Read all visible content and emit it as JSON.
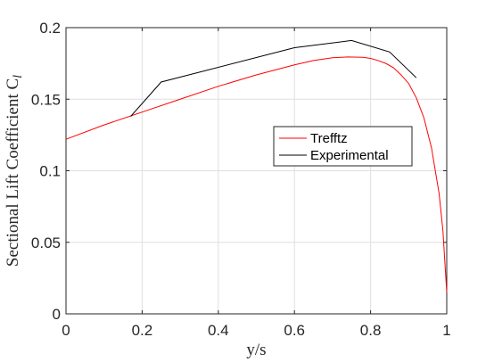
{
  "chart_data": {
    "type": "line",
    "xlabel": "y/s",
    "ylabel": "Sectional Lift Coefficient C",
    "ylabel_subscript": "l",
    "xlim": [
      0,
      1
    ],
    "ylim": [
      0,
      0.2
    ],
    "xticks": [
      0,
      0.2,
      0.4,
      0.6,
      0.8,
      1
    ],
    "xtick_labels": [
      "0",
      "0.2",
      "0.4",
      "0.6",
      "0.8",
      "1"
    ],
    "yticks": [
      0,
      0.05,
      0.1,
      0.15,
      0.2
    ],
    "ytick_labels": [
      "0",
      "0.05",
      "0.1",
      "0.15",
      "0.2"
    ],
    "grid": true,
    "legend_placement": "center-right",
    "series": [
      {
        "name": "Trefftz",
        "color": "#ff0000",
        "x": [
          0,
          0.1,
          0.2,
          0.3,
          0.4,
          0.5,
          0.6,
          0.65,
          0.7,
          0.74,
          0.78,
          0.8,
          0.82,
          0.84,
          0.86,
          0.88,
          0.9,
          0.92,
          0.94,
          0.96,
          0.98,
          0.99,
          1.0
        ],
        "y": [
          0.122,
          0.132,
          0.141,
          0.15,
          0.159,
          0.167,
          0.174,
          0.177,
          0.179,
          0.1795,
          0.1793,
          0.1785,
          0.177,
          0.175,
          0.172,
          0.167,
          0.161,
          0.151,
          0.137,
          0.116,
          0.084,
          0.058,
          0.015
        ]
      },
      {
        "name": "Experimental",
        "color": "#000000",
        "x": [
          0.17,
          0.25,
          0.6,
          0.75,
          0.85,
          0.92
        ],
        "y": [
          0.138,
          0.162,
          0.186,
          0.191,
          0.183,
          0.165
        ]
      }
    ]
  }
}
